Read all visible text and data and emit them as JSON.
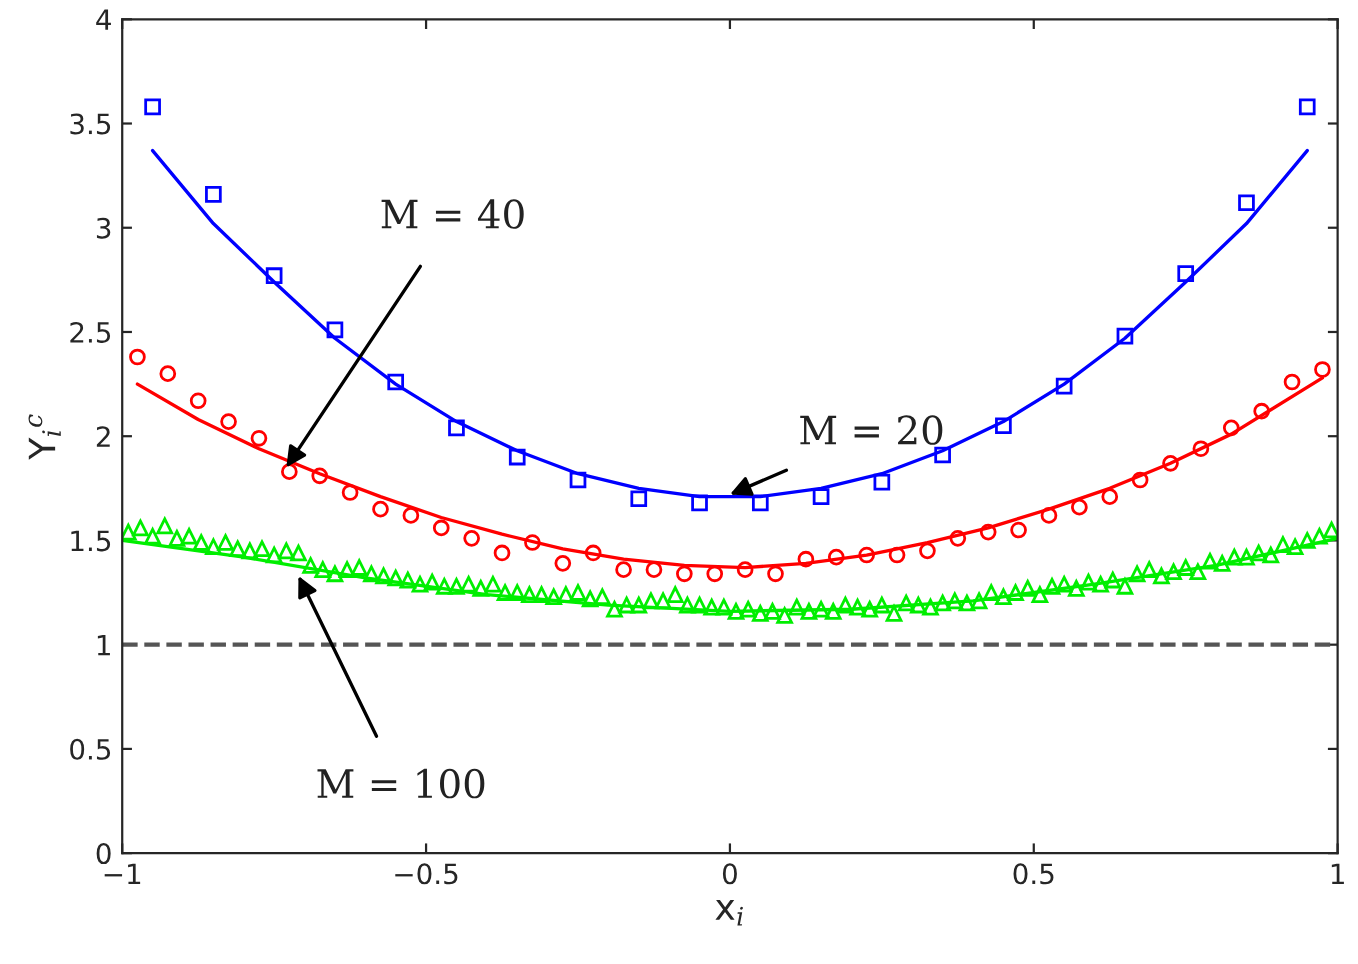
{
  "chart_data": {
    "type": "scatter",
    "xlabel": "x$_{i}$",
    "ylabel": "Y$_{i}$$^{c}$",
    "xlim": [
      -1,
      1
    ],
    "ylim": [
      0,
      4
    ],
    "xticks": [
      {
        "value": -1,
        "label": "−1"
      },
      {
        "value": -0.5,
        "label": "−0.5"
      },
      0,
      0.5,
      1
    ],
    "yticks": [
      0,
      0.5,
      1,
      1.5,
      2,
      2.5,
      3,
      3.5,
      4
    ],
    "grid": false,
    "legend": false,
    "ref_lines": [
      {
        "axis": "y",
        "value": 1,
        "color": "#555555",
        "line_style": "dashed"
      }
    ],
    "series": [
      {
        "marker": "square",
        "color": "#0000ff",
        "x": [
          -0.95,
          -0.85,
          -0.75,
          -0.65,
          -0.55,
          -0.45,
          -0.35,
          -0.25,
          -0.15,
          -0.05,
          0.05,
          0.15,
          0.25,
          0.35,
          0.45,
          0.55,
          0.65,
          0.75,
          0.85,
          0.95
        ],
        "values": [
          3.58,
          3.16,
          2.77,
          2.51,
          2.26,
          2.04,
          1.9,
          1.79,
          1.7,
          1.68,
          1.68,
          1.71,
          1.78,
          1.91,
          2.05,
          2.24,
          2.48,
          2.78,
          3.12,
          3.58
        ]
      },
      {
        "type": "line",
        "marker": "none",
        "line_style": "solid",
        "color": "#0000ff",
        "x": [
          -0.95,
          -0.85,
          -0.75,
          -0.65,
          -0.55,
          -0.45,
          -0.35,
          -0.25,
          -0.15,
          -0.05,
          0.05,
          0.15,
          0.25,
          0.35,
          0.45,
          0.55,
          0.65,
          0.75,
          0.85,
          0.95
        ],
        "values": [
          3.37,
          3.02,
          2.74,
          2.47,
          2.25,
          2.07,
          1.93,
          1.82,
          1.75,
          1.71,
          1.71,
          1.75,
          1.82,
          1.93,
          2.07,
          2.25,
          2.47,
          2.74,
          3.02,
          3.37
        ]
      },
      {
        "marker": "circle",
        "color": "#ff0000",
        "x": [
          -0.975,
          -0.925,
          -0.875,
          -0.825,
          -0.775,
          -0.725,
          -0.675,
          -0.625,
          -0.575,
          -0.525,
          -0.475,
          -0.425,
          -0.375,
          -0.325,
          -0.275,
          -0.225,
          -0.175,
          -0.125,
          -0.075,
          -0.025,
          0.025,
          0.075,
          0.125,
          0.175,
          0.225,
          0.275,
          0.325,
          0.375,
          0.425,
          0.475,
          0.525,
          0.575,
          0.625,
          0.675,
          0.725,
          0.775,
          0.825,
          0.875,
          0.925,
          0.975
        ],
        "values": [
          2.38,
          2.3,
          2.17,
          2.07,
          1.99,
          1.83,
          1.81,
          1.73,
          1.65,
          1.62,
          1.56,
          1.51,
          1.44,
          1.49,
          1.39,
          1.44,
          1.36,
          1.36,
          1.34,
          1.34,
          1.36,
          1.34,
          1.41,
          1.42,
          1.43,
          1.43,
          1.45,
          1.51,
          1.54,
          1.55,
          1.62,
          1.66,
          1.71,
          1.79,
          1.87,
          1.94,
          2.04,
          2.12,
          2.26,
          2.32
        ]
      },
      {
        "type": "line",
        "marker": "none",
        "line_style": "solid",
        "color": "#ff0000",
        "x": [
          -0.975,
          -0.875,
          -0.775,
          -0.675,
          -0.575,
          -0.475,
          -0.375,
          -0.275,
          -0.175,
          -0.075,
          0.025,
          0.125,
          0.225,
          0.325,
          0.425,
          0.525,
          0.625,
          0.725,
          0.825,
          0.975
        ],
        "values": [
          2.25,
          2.08,
          1.94,
          1.82,
          1.71,
          1.61,
          1.53,
          1.46,
          1.41,
          1.38,
          1.37,
          1.39,
          1.43,
          1.49,
          1.56,
          1.65,
          1.75,
          1.87,
          2.01,
          2.28
        ]
      },
      {
        "marker": "triangle",
        "color": "#00ee00",
        "x": [
          -0.99,
          -0.97,
          -0.95,
          -0.93,
          -0.91,
          -0.89,
          -0.87,
          -0.85,
          -0.83,
          -0.81,
          -0.79,
          -0.77,
          -0.75,
          -0.73,
          -0.71,
          -0.69,
          -0.67,
          -0.65,
          -0.63,
          -0.61,
          -0.59,
          -0.57,
          -0.55,
          -0.53,
          -0.51,
          -0.49,
          -0.47,
          -0.45,
          -0.43,
          -0.41,
          -0.39,
          -0.37,
          -0.35,
          -0.33,
          -0.31,
          -0.29,
          -0.27,
          -0.25,
          -0.23,
          -0.21,
          -0.19,
          -0.17,
          -0.15,
          -0.13,
          -0.11,
          -0.09,
          -0.07,
          -0.05,
          -0.03,
          -0.01,
          0.01,
          0.03,
          0.05,
          0.07,
          0.09,
          0.11,
          0.13,
          0.15,
          0.17,
          0.19,
          0.21,
          0.23,
          0.25,
          0.27,
          0.29,
          0.31,
          0.33,
          0.35,
          0.37,
          0.39,
          0.41,
          0.43,
          0.45,
          0.47,
          0.49,
          0.51,
          0.53,
          0.55,
          0.57,
          0.59,
          0.61,
          0.63,
          0.65,
          0.67,
          0.69,
          0.71,
          0.73,
          0.75,
          0.77,
          0.79,
          0.81,
          0.83,
          0.85,
          0.87,
          0.89,
          0.91,
          0.93,
          0.95,
          0.97,
          0.99
        ],
        "values": [
          1.54,
          1.56,
          1.52,
          1.57,
          1.51,
          1.52,
          1.49,
          1.47,
          1.49,
          1.46,
          1.45,
          1.46,
          1.43,
          1.45,
          1.44,
          1.38,
          1.36,
          1.34,
          1.36,
          1.37,
          1.34,
          1.33,
          1.32,
          1.31,
          1.29,
          1.3,
          1.28,
          1.28,
          1.29,
          1.27,
          1.29,
          1.25,
          1.25,
          1.24,
          1.24,
          1.23,
          1.24,
          1.25,
          1.22,
          1.23,
          1.17,
          1.19,
          1.19,
          1.21,
          1.21,
          1.24,
          1.19,
          1.19,
          1.18,
          1.18,
          1.16,
          1.17,
          1.15,
          1.16,
          1.14,
          1.18,
          1.16,
          1.17,
          1.16,
          1.19,
          1.18,
          1.17,
          1.19,
          1.15,
          1.2,
          1.19,
          1.18,
          1.2,
          1.21,
          1.2,
          1.21,
          1.25,
          1.23,
          1.25,
          1.27,
          1.24,
          1.28,
          1.29,
          1.27,
          1.3,
          1.29,
          1.31,
          1.28,
          1.34,
          1.36,
          1.33,
          1.35,
          1.37,
          1.35,
          1.4,
          1.39,
          1.42,
          1.42,
          1.44,
          1.43,
          1.48,
          1.47,
          1.5,
          1.52,
          1.55
        ]
      },
      {
        "type": "line",
        "marker": "none",
        "line_style": "solid",
        "color": "#00ee00",
        "x": [
          -1,
          -0.8,
          -0.6,
          -0.4,
          -0.2,
          0,
          0.2,
          0.4,
          0.6,
          0.8,
          1
        ],
        "values": [
          1.5,
          1.42,
          1.32,
          1.24,
          1.19,
          1.16,
          1.17,
          1.21,
          1.29,
          1.38,
          1.51
        ]
      }
    ],
    "annotations": [
      {
        "text": "M = 40",
        "x": -0.73,
        "y": 1.85
      },
      {
        "text": "M = 20",
        "x": 0.0,
        "y": 1.72
      },
      {
        "text": "M = 100",
        "x": -0.71,
        "y": 1.33
      }
    ]
  }
}
